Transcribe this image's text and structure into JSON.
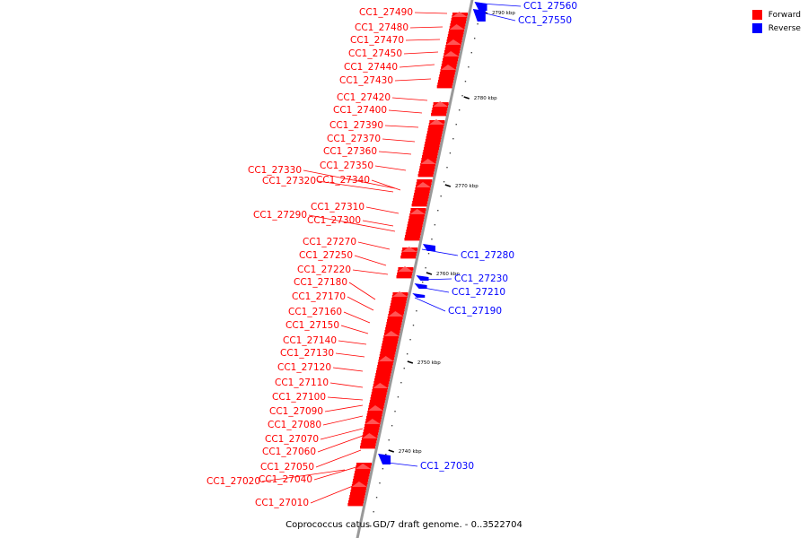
{
  "caption": "Coprococcus catus GD/7 draft genome. - 0..3522704",
  "colors": {
    "forward": "#ff0000",
    "reverse": "#0000ff",
    "backbone": "#999999"
  },
  "legend": [
    {
      "label": "Forward",
      "color": "#ff0000"
    },
    {
      "label": "Reverse",
      "color": "#0000ff"
    }
  ],
  "ticks": [
    "2790 kbp",
    "2780 kbp",
    "2770 kbp",
    "2760 kbp",
    "2750 kbp",
    "2740 kbp"
  ],
  "genes_forward": [
    "CC1_27490",
    "CC1_27480",
    "CC1_27470",
    "CC1_27450",
    "CC1_27440",
    "CC1_27430",
    "CC1_27420",
    "CC1_27400",
    "CC1_27390",
    "CC1_27370",
    "CC1_27360",
    "CC1_27350",
    "CC1_27330",
    "CC1_27320",
    "CC1_27340",
    "CC1_27310",
    "CC1_27290",
    "CC1_27300",
    "CC1_27270",
    "CC1_27250",
    "CC1_27220",
    "CC1_27180",
    "CC1_27170",
    "CC1_27160",
    "CC1_27150",
    "CC1_27140",
    "CC1_27130",
    "CC1_27120",
    "CC1_27110",
    "CC1_27100",
    "CC1_27090",
    "CC1_27080",
    "CC1_27070",
    "CC1_27060",
    "CC1_27050",
    "CC1_27040",
    "CC1_27020",
    "CC1_27010"
  ],
  "genes_reverse": [
    "CC1_27560",
    "CC1_27550",
    "CC1_27280",
    "CC1_27230",
    "CC1_27210",
    "CC1_27190",
    "CC1_27030"
  ]
}
